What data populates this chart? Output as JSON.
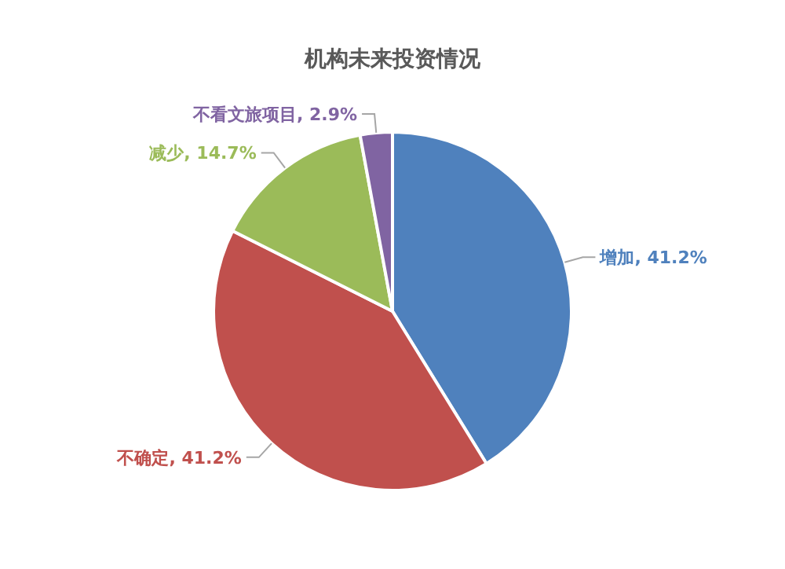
{
  "chart_data": {
    "type": "pie",
    "title": "机构未来投资情况",
    "categories": [
      "增加",
      "不确定",
      "减少",
      "不看文旅项目"
    ],
    "values": [
      41.2,
      41.2,
      14.7,
      2.9
    ],
    "colors": [
      "#4f81bd",
      "#c0504d",
      "#9bbb59",
      "#8064a2"
    ],
    "value_labels": [
      ", 41.2%",
      ", 41.2%",
      ", 14.7%",
      ", 2.9%"
    ],
    "legend": false
  }
}
